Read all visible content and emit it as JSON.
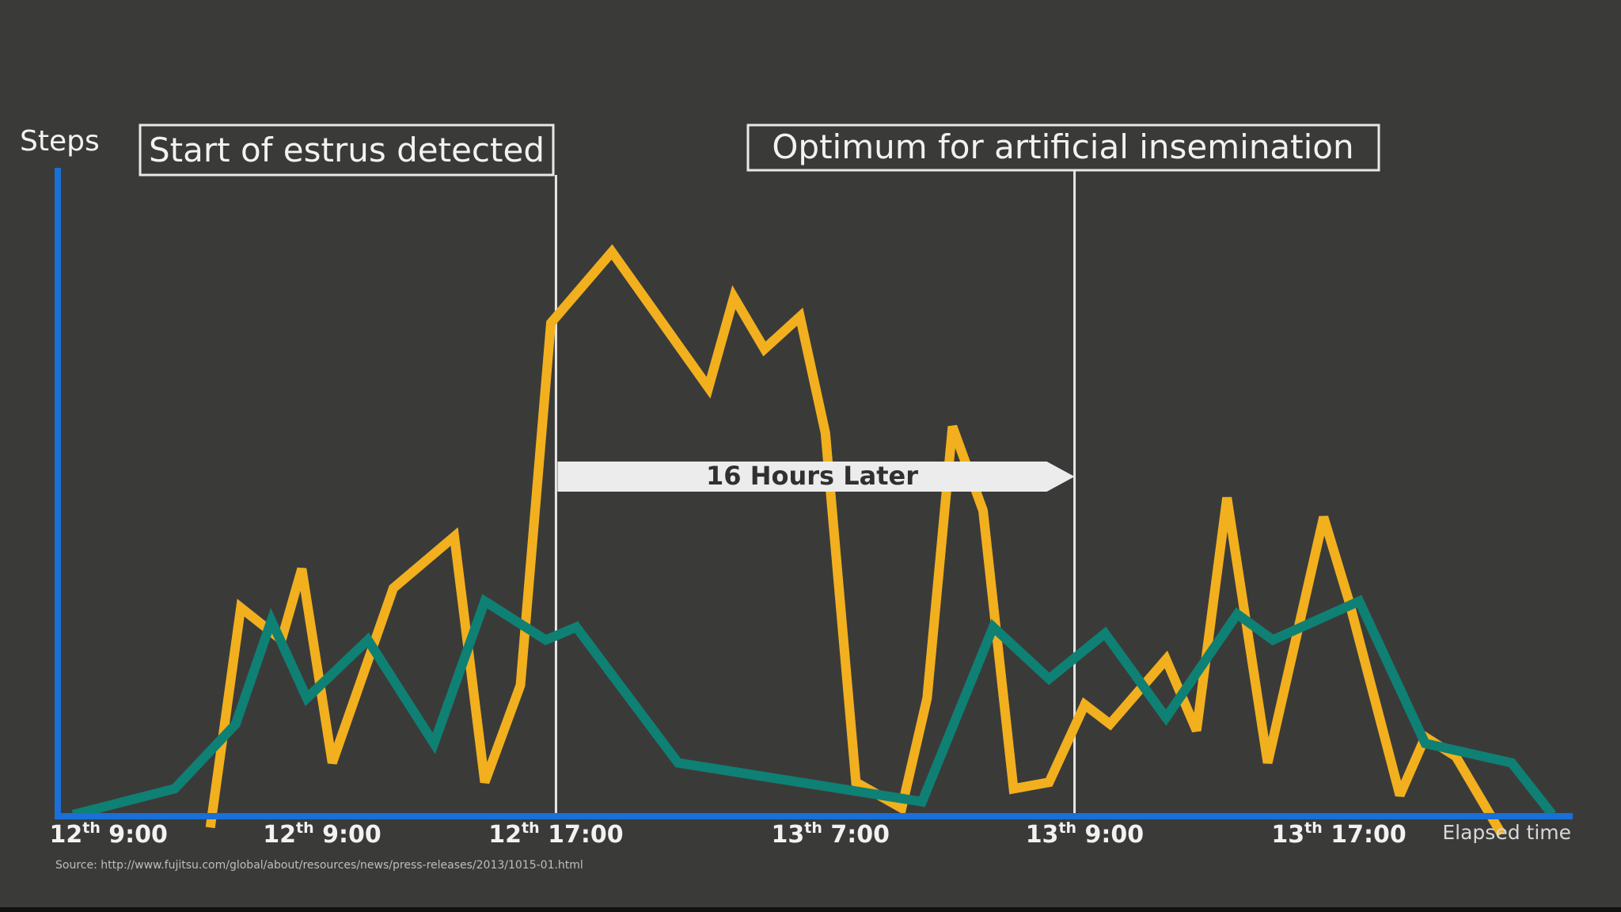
{
  "chart_data": {
    "type": "line",
    "ylabel": "Steps",
    "xlabel": "Elapsed time",
    "x_ticks": [
      {
        "day": "12",
        "sup": "th",
        "time": "9:00",
        "position": 0.5
      },
      {
        "day": "12",
        "sup": "th",
        "time": "9:00",
        "position": 2.6
      },
      {
        "day": "12",
        "sup": "th",
        "time": "17:00",
        "position": 4.9
      },
      {
        "day": "13",
        "sup": "th",
        "time": "7:00",
        "position": 7.6
      },
      {
        "day": "13",
        "sup": "th",
        "time": "9:00",
        "position": 10.1
      },
      {
        "day": "13",
        "sup": "th",
        "time": "17:00",
        "position": 12.6
      }
    ],
    "xlim": [
      0,
      14.9
    ],
    "ylim": [
      0,
      100
    ],
    "grid": false,
    "legend": "none",
    "series": [
      {
        "color": "#f2b01e",
        "points": [
          [
            1.5,
            -2
          ],
          [
            1.8,
            32
          ],
          [
            2.2,
            27
          ],
          [
            2.4,
            38
          ],
          [
            2.7,
            8
          ],
          [
            3.3,
            35
          ],
          [
            3.9,
            43
          ],
          [
            4.2,
            5
          ],
          [
            4.55,
            20
          ],
          [
            4.85,
            76
          ],
          [
            5.45,
            87
          ],
          [
            6.4,
            66
          ],
          [
            6.65,
            80
          ],
          [
            6.95,
            72
          ],
          [
            7.3,
            77
          ],
          [
            7.55,
            59
          ],
          [
            7.85,
            5
          ],
          [
            8.3,
            1
          ],
          [
            8.55,
            18
          ],
          [
            8.8,
            60
          ],
          [
            9.1,
            47
          ],
          [
            9.4,
            4
          ],
          [
            9.75,
            5
          ],
          [
            10.1,
            17
          ],
          [
            10.35,
            14
          ],
          [
            10.9,
            24
          ],
          [
            11.2,
            13
          ],
          [
            11.5,
            49
          ],
          [
            11.9,
            8
          ],
          [
            12.45,
            46
          ],
          [
            12.7,
            33
          ],
          [
            13.2,
            3
          ],
          [
            13.45,
            12
          ],
          [
            13.75,
            9
          ],
          [
            14.2,
            -3
          ]
        ]
      },
      {
        "color": "#0f8074",
        "points": [
          [
            0.15,
            0
          ],
          [
            1.15,
            4
          ],
          [
            1.75,
            14
          ],
          [
            2.1,
            30
          ],
          [
            2.45,
            18
          ],
          [
            3.05,
            27
          ],
          [
            3.7,
            11
          ],
          [
            4.2,
            33
          ],
          [
            4.8,
            27
          ],
          [
            5.1,
            29
          ],
          [
            6.1,
            8
          ],
          [
            8.5,
            2
          ],
          [
            9.2,
            29
          ],
          [
            9.75,
            21
          ],
          [
            10.3,
            28
          ],
          [
            10.9,
            15
          ],
          [
            11.6,
            31
          ],
          [
            11.95,
            27
          ],
          [
            12.8,
            33
          ],
          [
            13.45,
            11
          ],
          [
            14.3,
            8
          ],
          [
            14.7,
            0
          ]
        ]
      }
    ],
    "annotations": [
      {
        "text": "Start of estrus detected",
        "at": 4.9
      },
      {
        "text": "Optimum for artificial insemination",
        "at": 10.0
      }
    ],
    "interval_label": "16 Hours Later"
  },
  "source": "Source: http://www.fujitsu.com/global/about/resources/news/press-releases/2013/1015-01.html"
}
